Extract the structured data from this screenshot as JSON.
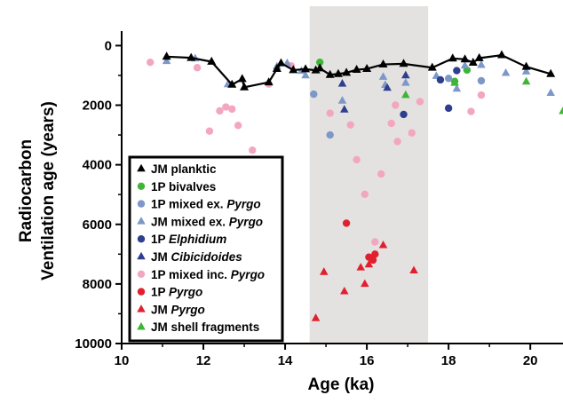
{
  "chart_data": {
    "type": "scatter",
    "title": "",
    "xlabel": "Age (ka)",
    "ylabel": [
      "Radiocarbon",
      "Ventilation age (years)"
    ],
    "xlim": [
      10,
      20.8
    ],
    "ylim": [
      10000,
      -250
    ],
    "y_inverted": true,
    "xticks": [
      10,
      12,
      14,
      16,
      18,
      20
    ],
    "yticks": [
      0,
      2000,
      4000,
      6000,
      8000,
      10000
    ],
    "grid": false,
    "legend_position": "bottom-left",
    "shaded_band": {
      "x_start": 14.6,
      "x_end": 17.5,
      "color": "#e3e2e0"
    },
    "series": [
      {
        "name": "JM planktic",
        "marker": "triangle",
        "line": true,
        "color": "#000000",
        "points": [
          [
            11.1,
            370
          ],
          [
            11.7,
            410
          ],
          [
            12.2,
            540
          ],
          [
            12.7,
            1310
          ],
          [
            12.95,
            1120
          ],
          [
            13.0,
            1400
          ],
          [
            13.6,
            1230
          ],
          [
            13.8,
            780
          ],
          [
            13.9,
            590
          ],
          [
            14.2,
            820
          ],
          [
            14.5,
            790
          ],
          [
            14.75,
            830
          ],
          [
            14.85,
            760
          ],
          [
            15.1,
            980
          ],
          [
            15.3,
            950
          ],
          [
            15.5,
            910
          ],
          [
            15.75,
            810
          ],
          [
            16.0,
            780
          ],
          [
            16.4,
            630
          ],
          [
            16.9,
            610
          ],
          [
            17.6,
            740
          ],
          [
            18.1,
            430
          ],
          [
            18.4,
            460
          ],
          [
            18.6,
            570
          ],
          [
            18.75,
            420
          ],
          [
            19.3,
            320
          ],
          [
            19.9,
            710
          ],
          [
            20.5,
            950
          ]
        ]
      },
      {
        "name": "1P bivalves",
        "marker": "circle",
        "color": "#3fb535",
        "points": [
          [
            14.85,
            560
          ],
          [
            18.45,
            820
          ],
          [
            18.15,
            1200
          ]
        ]
      },
      {
        "name": "1P mixed ex. Pyrgo",
        "marker": "circle",
        "color": "#7d97c9",
        "points": [
          [
            14.7,
            1630
          ],
          [
            15.1,
            3000
          ],
          [
            18.8,
            1180
          ],
          [
            18.0,
            1100
          ]
        ]
      },
      {
        "name": "JM mixed ex. Pyrgo",
        "marker": "triangle",
        "color": "#7d97c9",
        "points": [
          [
            11.1,
            520
          ],
          [
            11.8,
            430
          ],
          [
            12.6,
            1300
          ],
          [
            13.8,
            700
          ],
          [
            14.05,
            590
          ],
          [
            14.4,
            850
          ],
          [
            14.5,
            1000
          ],
          [
            15.4,
            1850
          ],
          [
            16.4,
            1050
          ],
          [
            16.45,
            1320
          ],
          [
            16.95,
            1250
          ],
          [
            17.7,
            1020
          ],
          [
            18.2,
            1450
          ],
          [
            18.4,
            670
          ],
          [
            18.8,
            650
          ],
          [
            19.4,
            920
          ],
          [
            19.9,
            870
          ],
          [
            20.5,
            1590
          ]
        ]
      },
      {
        "name": "1P Elphidium",
        "marker": "circle",
        "color": "#2f3f8f",
        "points": [
          [
            16.9,
            2310
          ],
          [
            17.8,
            1150
          ],
          [
            18.0,
            2100
          ],
          [
            18.2,
            840
          ]
        ]
      },
      {
        "name": "JM Cibicidoides",
        "marker": "triangle",
        "color": "#2f3f8f",
        "points": [
          [
            15.45,
            2150
          ],
          [
            15.4,
            1280
          ],
          [
            16.5,
            1420
          ],
          [
            16.95,
            1000
          ]
        ]
      },
      {
        "name": "1P mixed inc. Pyrgo",
        "marker": "circle",
        "color": "#f3a6bf",
        "points": [
          [
            10.7,
            560
          ],
          [
            11.85,
            740
          ],
          [
            12.15,
            2870
          ],
          [
            12.4,
            2190
          ],
          [
            12.55,
            2060
          ],
          [
            12.7,
            2130
          ],
          [
            12.85,
            2680
          ],
          [
            13.2,
            3510
          ],
          [
            13.6,
            1290
          ],
          [
            14.15,
            680
          ],
          [
            15.1,
            2270
          ],
          [
            15.6,
            2660
          ],
          [
            15.75,
            3830
          ],
          [
            15.95,
            4990
          ],
          [
            16.35,
            4310
          ],
          [
            16.6,
            2610
          ],
          [
            16.75,
            3220
          ],
          [
            17.1,
            2930
          ],
          [
            17.3,
            1880
          ],
          [
            16.2,
            6590
          ],
          [
            18.55,
            2210
          ],
          [
            18.8,
            1660
          ],
          [
            16.7,
            2000
          ]
        ]
      },
      {
        "name": "1P Pyrgo",
        "marker": "circle",
        "color": "#e1202f",
        "points": [
          [
            15.5,
            5960
          ],
          [
            16.05,
            7100
          ],
          [
            16.15,
            7200
          ],
          [
            16.2,
            7000
          ]
        ]
      },
      {
        "name": "JM Pyrgo",
        "marker": "triangle",
        "color": "#e1202f",
        "points": [
          [
            14.75,
            9150
          ],
          [
            14.95,
            7600
          ],
          [
            15.45,
            8250
          ],
          [
            15.85,
            7450
          ],
          [
            16.05,
            7350
          ],
          [
            16.4,
            6700
          ],
          [
            17.15,
            7550
          ],
          [
            15.95,
            8000
          ]
        ]
      },
      {
        "name": "JM shell fragments",
        "marker": "triangle",
        "color": "#3fb535",
        "points": [
          [
            16.95,
            1660
          ],
          [
            18.15,
            1250
          ],
          [
            19.9,
            1210
          ],
          [
            20.8,
            2200
          ]
        ]
      }
    ]
  },
  "legend": {
    "entries": [
      {
        "prefix": "JM ",
        "genus": "",
        "suffix": "planktic",
        "italic_part": ""
      },
      {
        "prefix": "1P ",
        "genus": "",
        "suffix": "bivalves",
        "italic_part": ""
      },
      {
        "prefix": "1P mixed ex. ",
        "genus": "Pyrgo",
        "suffix": "",
        "italic_part": "Pyrgo"
      },
      {
        "prefix": "JM mixed ex. ",
        "genus": "Pyrgo",
        "suffix": "",
        "italic_part": "Pyrgo"
      },
      {
        "prefix": "1P ",
        "genus": "Elphidium",
        "suffix": "",
        "italic_part": "Elphidium"
      },
      {
        "prefix": "JM ",
        "genus": "Cibicidoides",
        "suffix": "",
        "italic_part": "Cibicidoides"
      },
      {
        "prefix": "1P mixed inc. ",
        "genus": "Pyrgo",
        "suffix": "",
        "italic_part": "Pyrgo"
      },
      {
        "prefix": "1P ",
        "genus": "Pyrgo",
        "suffix": "",
        "italic_part": "Pyrgo"
      },
      {
        "prefix": "JM ",
        "genus": "Pyrgo",
        "suffix": "",
        "italic_part": "Pyrgo"
      },
      {
        "prefix": "JM ",
        "genus": "",
        "suffix": "shell fragments",
        "italic_part": ""
      }
    ]
  }
}
